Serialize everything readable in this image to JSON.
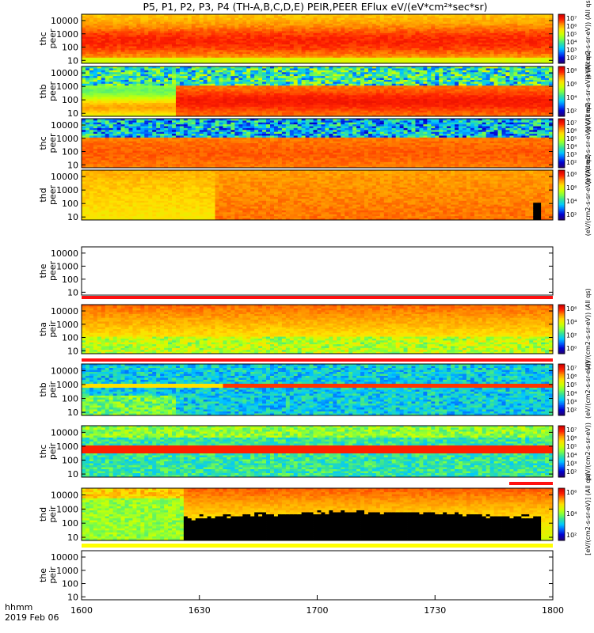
{
  "title": "P5, P1, P2, P3, P4 (TH-A,B,C,D,E) PEIR,PEER EFlux eV/(eV*cm²*sec*sr)",
  "x_axis": {
    "unit_label": "hhmm",
    "date_label": "2019 Feb 06",
    "ticks": [
      "1600",
      "1630",
      "1700",
      "1730",
      "1800"
    ]
  },
  "colors": {
    "colormap": [
      "#20007a",
      "#0000d0",
      "#0060ff",
      "#00c8ff",
      "#30e0a0",
      "#80ff40",
      "#d0ff00",
      "#ffe000",
      "#ff9000",
      "#ff2000",
      "#d00000"
    ],
    "separator_red": "#ff1010",
    "separator_yellow": "#ffff00",
    "background": "#ffffff"
  },
  "chart_data": {
    "type": "heatmap",
    "x_range": [
      "1600",
      "1800"
    ],
    "y_scale": "log",
    "y_ticks": [
      "10",
      "100",
      "1000",
      "10000"
    ],
    "panels": [
      {
        "ylabel": "thc peer",
        "colorbar_label": "(eV/(cm2-s-sr-eV)) (All qs)",
        "colorbar_ticks": [
          "10⁷",
          "10⁶",
          "10⁵",
          "10⁴",
          "10³",
          "10²"
        ],
        "has_data": true
      },
      {
        "ylabel": "thb peer",
        "colorbar_label": "(eV/(cm2-s-sr-eV)) (All qs)",
        "colorbar_ticks": [
          "10⁸",
          "10⁶",
          "10⁴",
          "10²"
        ],
        "has_data": true
      },
      {
        "ylabel": "thc peer",
        "colorbar_label": "(eV/(cm2-s-sr-eV)) (All qs)",
        "colorbar_ticks": [
          "10⁷",
          "10⁶",
          "10⁵",
          "10⁴",
          "10³",
          "10²"
        ],
        "has_data": true
      },
      {
        "ylabel": "thd peer",
        "colorbar_label": "(eV/(cm2-s-sr-eV)) (All qs)",
        "colorbar_ticks": [
          "10⁸",
          "10⁶",
          "10⁴",
          "10²"
        ],
        "has_data": true
      },
      {
        "ylabel": "the peer",
        "colorbar_label": "(eV/(cm2-s-sr-eV)) (All qs)",
        "colorbar_ticks": [],
        "has_data": false
      },
      {
        "ylabel": "tha peir",
        "colorbar_label": "(eV/(cm2-s-sr-eV)) (All qs)",
        "colorbar_ticks": [
          "10⁶",
          "10⁴",
          "10²",
          "10⁰"
        ],
        "has_data": true
      },
      {
        "ylabel": "thb peir",
        "colorbar_label": "(eV/(cm2-s-sr-eV))",
        "colorbar_ticks": [
          "10⁷",
          "10⁶",
          "10⁵",
          "10⁴",
          "10³",
          "10²"
        ],
        "has_data": true
      },
      {
        "ylabel": "thc peir",
        "colorbar_label": "(eV/(cm2-s-sr-eV))",
        "colorbar_ticks": [
          "10⁷",
          "10⁶",
          "10⁵",
          "10⁴",
          "10³",
          "10²"
        ],
        "has_data": true
      },
      {
        "ylabel": "thd peir",
        "colorbar_label": "[eV/(cm2-s-sr-eV)] (All qs)",
        "colorbar_ticks": [
          "10⁶",
          "10⁴",
          "10²"
        ],
        "has_data": true
      },
      {
        "ylabel": "the peir",
        "colorbar_label": "",
        "colorbar_ticks": [],
        "has_data": false
      }
    ]
  }
}
